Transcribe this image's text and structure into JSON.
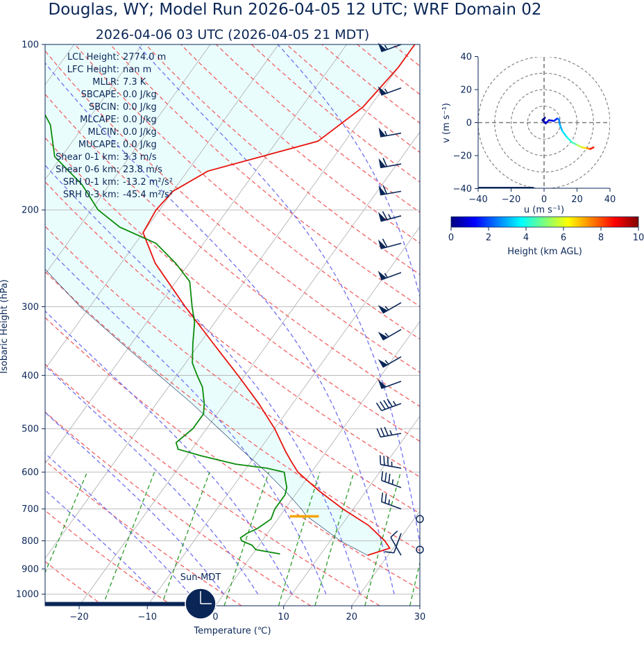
{
  "figure": {
    "title": "Douglas, WY; Model Run 2026-04-05 12 UTC; WRF Domain 02",
    "subtitle": "2026-04-06 03 UTC  (2026-04-05 21 MDT)"
  },
  "colors": {
    "text": "#0a2657",
    "temperature": "#e8120c",
    "dewpoint": "#0a8a0a",
    "parcel": "#0a2657",
    "cape_fill": "#eafdfd",
    "dry_adiabat": "#f06060",
    "moist_adiabat": "#6f6ff2",
    "mixing_ratio": "#2a9a2a",
    "isotherm": "#b4b4b4",
    "lcl_marker": "#f5a400",
    "wind_barb": "#0a2657"
  },
  "stats": [
    {
      "label": "LCL Height:",
      "value": "2774.0 m"
    },
    {
      "label": "LFC Height:",
      "value": "nan m"
    },
    {
      "label": "MLLR:",
      "value": "7.3 K"
    },
    {
      "label": "SBCAPE:",
      "value": "0.0 J/kg"
    },
    {
      "label": "SBCIN:",
      "value": "0.0 J/kg"
    },
    {
      "label": "MLCAPE:",
      "value": "0.0 J/kg"
    },
    {
      "label": "MLCIN:",
      "value": "0.0 J/kg"
    },
    {
      "label": "MUCAPE:",
      "value": "0.0 J/kg"
    },
    {
      "label": "Shear 0-1 km:",
      "value": "3.3 m/s"
    },
    {
      "label": "Shear 0-6 km:",
      "value": "23.8 m/s"
    },
    {
      "label": "SRH 0-1 km:",
      "value": "-13.2 m²/s²"
    },
    {
      "label": "SRH 0-3 km:",
      "value": "-45.4 m²/s²"
    }
  ],
  "sun_label": "Sun-MDT",
  "chart_data": [
    {
      "type": "line",
      "subtype": "skew-T log-P",
      "xlabel": "Temperature (℃)",
      "ylabel": "Isobaric Height (hPa)",
      "xlim": [
        -25,
        30
      ],
      "ylim": [
        1050,
        100
      ],
      "y_scale": "log",
      "x_ticks": [
        -20,
        -10,
        0,
        10,
        20,
        30
      ],
      "x_tick_labels": [
        "−20",
        "−10",
        "0",
        "10",
        "20",
        "30"
      ],
      "y_ticks": [
        1000,
        900,
        800,
        700,
        600,
        500,
        400,
        300,
        200,
        100
      ],
      "y_tick_labels": [
        "1000",
        "900",
        "800",
        "700",
        "600",
        "500",
        "400",
        "300",
        "200",
        "100"
      ],
      "series": [
        {
          "key": "temperature",
          "p": [
            850,
            825,
            800,
            750,
            700,
            650,
            600,
            575,
            550,
            500,
            450,
            400,
            350,
            300,
            250,
            220,
            200,
            185,
            170,
            150,
            130,
            110,
            100
          ],
          "t": [
            17,
            19.5,
            18,
            14,
            8.5,
            3.2,
            -2,
            -4,
            -6,
            -10,
            -15,
            -21,
            -28,
            -36,
            -45,
            -50,
            -50.5,
            -50,
            -47,
            -34,
            -31,
            -30,
            -30
          ]
        },
        {
          "key": "dewpoint",
          "p": [
            845,
            830,
            815,
            800,
            790,
            775,
            760,
            745,
            730,
            700,
            660,
            640,
            620,
            600,
            590,
            580,
            560,
            545,
            530,
            500,
            470,
            450,
            420,
            400,
            380,
            350,
            320,
            300,
            270,
            250,
            230,
            215,
            200,
            180,
            160,
            140,
            125,
            110,
            100
          ],
          "t": [
            4,
            0,
            -1,
            -3,
            -3.5,
            -3,
            -2,
            -1.5,
            -1,
            -1.5,
            -1.5,
            -2,
            -3,
            -4,
            -7,
            -12,
            -18,
            -22,
            -23,
            -22,
            -22,
            -23,
            -25,
            -27,
            -29,
            -31,
            -33,
            -35,
            -38,
            -42,
            -47,
            -54,
            -59,
            -64,
            -71,
            -75,
            -80,
            -85,
            -90
          ]
        },
        {
          "key": "parcel",
          "p": [
            850,
            800,
            750,
            720,
            700,
            650,
            600,
            550,
            500,
            450,
            400,
            350,
            300,
            250,
            200,
            150,
            100
          ],
          "t": [
            17,
            11.5,
            6.8,
            3.8,
            2.4,
            -1.8,
            -6.6,
            -12.2,
            -18.2,
            -24.8,
            -32.6,
            -41.4,
            -51.4,
            -62,
            -72,
            -86,
            -100
          ]
        }
      ],
      "lcl": {
        "p": 722,
        "t": 3.6
      },
      "wind_barbs": [
        {
          "p": 100,
          "speed_kt": 55,
          "dir_deg": 250
        },
        {
          "p": 120,
          "speed_kt": 55,
          "dir_deg": 250
        },
        {
          "p": 145,
          "speed_kt": 55,
          "dir_deg": 260
        },
        {
          "p": 165,
          "speed_kt": 60,
          "dir_deg": 260
        },
        {
          "p": 185,
          "speed_kt": 60,
          "dir_deg": 260
        },
        {
          "p": 205,
          "speed_kt": 65,
          "dir_deg": 255
        },
        {
          "p": 230,
          "speed_kt": 60,
          "dir_deg": 255
        },
        {
          "p": 260,
          "speed_kt": 55,
          "dir_deg": 250
        },
        {
          "p": 295,
          "speed_kt": 55,
          "dir_deg": 240
        },
        {
          "p": 330,
          "speed_kt": 55,
          "dir_deg": 240
        },
        {
          "p": 370,
          "speed_kt": 55,
          "dir_deg": 240
        },
        {
          "p": 410,
          "speed_kt": 50,
          "dir_deg": 250
        },
        {
          "p": 450,
          "speed_kt": 45,
          "dir_deg": 250
        },
        {
          "p": 510,
          "speed_kt": 35,
          "dir_deg": 260
        },
        {
          "p": 590,
          "speed_kt": 35,
          "dir_deg": 280
        },
        {
          "p": 640,
          "speed_kt": 35,
          "dir_deg": 290
        },
        {
          "p": 700,
          "speed_kt": 25,
          "dir_deg": 290
        },
        {
          "p": 730,
          "speed_kt": 0,
          "dir_deg": 0
        },
        {
          "p": 775,
          "speed_kt": 10,
          "dir_deg": 200
        },
        {
          "p": 830,
          "speed_kt": 0,
          "dir_deg": 0
        },
        {
          "p": 850,
          "speed_kt": 10,
          "dir_deg": 330
        }
      ]
    },
    {
      "type": "scatter",
      "subtype": "hodograph",
      "xlabel": "u (m s⁻¹)",
      "ylabel": "v (m s⁻¹)",
      "xlim": [
        -40,
        40
      ],
      "ylim": [
        -40,
        40
      ],
      "ticks": [
        -40,
        -20,
        0,
        20,
        40
      ],
      "tick_labels": [
        "−40",
        "−20",
        "0",
        "20",
        "40"
      ],
      "rings": [
        10,
        20,
        30,
        40
      ],
      "u": [
        -1,
        0.5,
        -0.5,
        1,
        0,
        1.5,
        3,
        6,
        8,
        9,
        9.5,
        11,
        14,
        17,
        20,
        23,
        26,
        28,
        30
      ],
      "v": [
        1.5,
        3,
        1,
        -0.5,
        0.5,
        0,
        1.5,
        1,
        2.5,
        2,
        -1,
        -5,
        -9,
        -12,
        -13.5,
        -15,
        -15.5,
        -16,
        -15
      ],
      "height_km": [
        0,
        0.1,
        0.2,
        0.4,
        0.6,
        0.8,
        1,
        1.5,
        2,
        2.5,
        3,
        3.5,
        4,
        4.5,
        5.5,
        6.5,
        7.5,
        8.5,
        9.5
      ]
    }
  ],
  "colorbar": {
    "label": "Height (km AGL)",
    "min": 0,
    "max": 10,
    "ticks": [
      0,
      2,
      4,
      6,
      8,
      10
    ],
    "tick_labels": [
      "0",
      "2",
      "4",
      "6",
      "8",
      "10"
    ],
    "colormap": "jet"
  }
}
